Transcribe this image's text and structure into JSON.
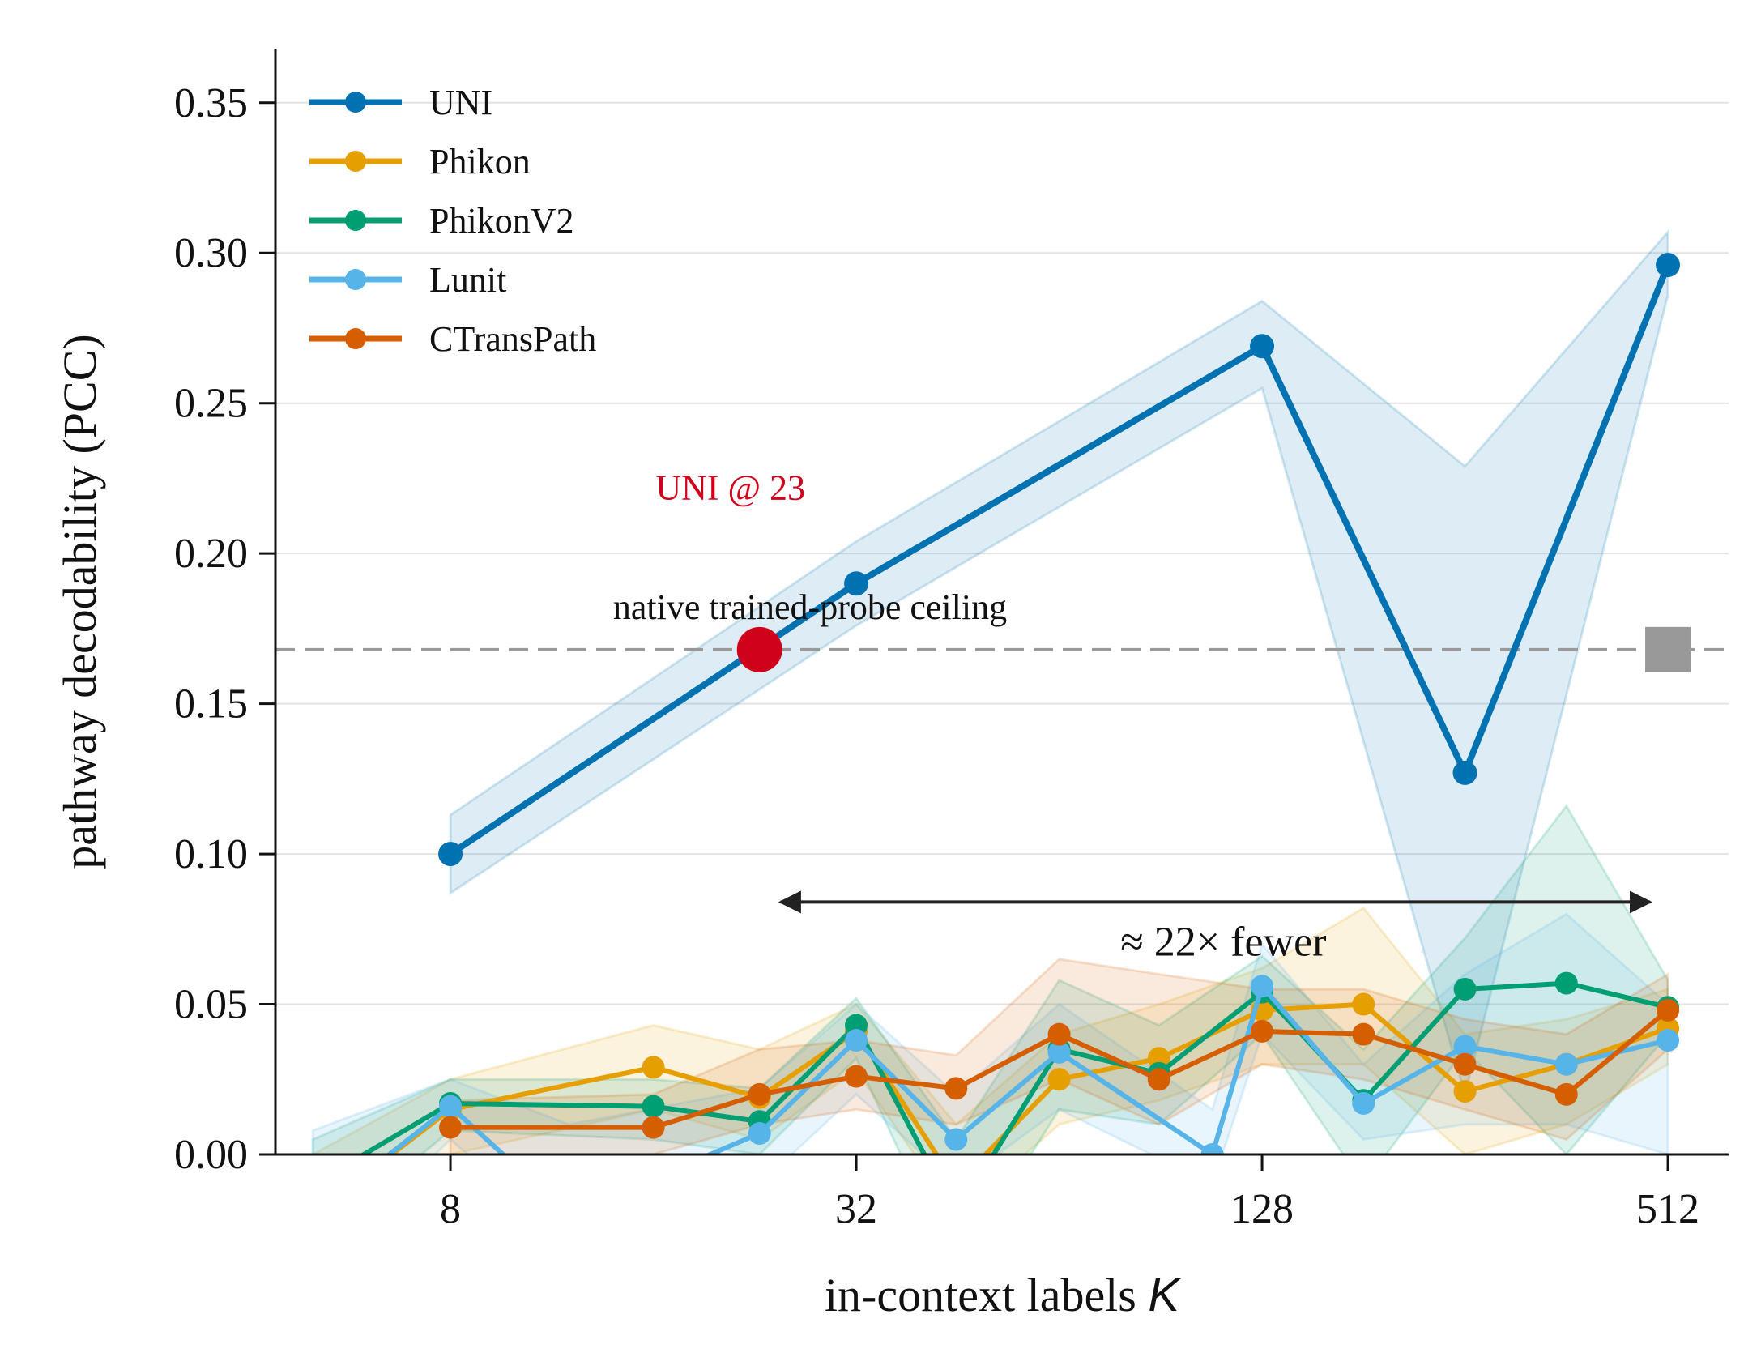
{
  "chart_data": {
    "type": "line",
    "xlabel": "in-context labels",
    "xlabel_var": "K",
    "ylabel": "pathway decodability (PCC)",
    "x_scale": "log2",
    "xlim": [
      4.4,
      630
    ],
    "ylim": [
      0.0,
      0.368
    ],
    "xticks": [
      8,
      32,
      128,
      512
    ],
    "xtick_labels": [
      "8",
      "32",
      "128",
      "512"
    ],
    "yticks": [
      0.0,
      0.05,
      0.1,
      0.15,
      0.2,
      0.25,
      0.3,
      0.35
    ],
    "ytick_labels": [
      "0.00",
      "0.05",
      "0.10",
      "0.15",
      "0.20",
      "0.25",
      "0.30",
      "0.35"
    ],
    "grid": "horizontal",
    "legend_position": "top-left",
    "series": [
      {
        "name": "UNI",
        "color": "#0072b2",
        "linewidth": "thick",
        "x": [
          8,
          32,
          128,
          256,
          512
        ],
        "y": [
          0.1,
          0.19,
          0.269,
          0.127,
          0.296
        ],
        "band_lower": [
          0.087,
          0.176,
          0.255,
          0.02,
          0.286
        ],
        "band_upper": [
          0.113,
          0.204,
          0.284,
          0.229,
          0.307
        ]
      },
      {
        "name": "Phikon",
        "color": "#e69f00",
        "x": [
          5,
          8,
          16,
          23,
          32,
          45,
          64,
          90,
          128,
          181,
          256,
          362,
          512
        ],
        "y": [
          -0.02,
          0.015,
          0.029,
          0.019,
          0.041,
          -0.01,
          0.025,
          0.032,
          0.048,
          0.05,
          0.021,
          0.03,
          0.042
        ],
        "band_lower": [
          -0.04,
          0.0,
          0.015,
          0.005,
          0.028,
          -0.02,
          0.01,
          0.018,
          0.03,
          0.03,
          0.0,
          0.01,
          0.03
        ],
        "band_upper": [
          0.0,
          0.025,
          0.043,
          0.035,
          0.05,
          0.01,
          0.04,
          0.05,
          0.062,
          0.082,
          0.04,
          0.045,
          0.055
        ]
      },
      {
        "name": "PhikonV2",
        "color": "#009e73",
        "x": [
          5,
          8,
          16,
          23,
          32,
          45,
          64,
          90,
          128,
          181,
          256,
          362,
          512
        ],
        "y": [
          -0.01,
          0.017,
          0.016,
          0.011,
          0.043,
          -0.02,
          0.035,
          0.027,
          0.054,
          0.018,
          0.055,
          0.057,
          0.049
        ],
        "band_lower": [
          -0.03,
          0.008,
          0.005,
          0.0,
          0.032,
          -0.04,
          0.015,
          0.01,
          0.04,
          -0.01,
          0.035,
          0.0,
          0.04
        ],
        "band_upper": [
          0.005,
          0.025,
          0.025,
          0.022,
          0.052,
          0.005,
          0.058,
          0.043,
          0.066,
          0.035,
          0.072,
          0.116,
          0.058
        ]
      },
      {
        "name": "Lunit",
        "color": "#56b4e9",
        "x": [
          5,
          8,
          12,
          23,
          32,
          45,
          64,
          108,
          128,
          181,
          256,
          362,
          512
        ],
        "y": [
          -0.02,
          0.016,
          -0.02,
          0.007,
          0.038,
          0.005,
          0.034,
          0.0,
          0.056,
          0.017,
          0.036,
          0.03,
          0.038
        ],
        "band_lower": [
          -0.04,
          0.005,
          -0.03,
          -0.01,
          0.02,
          -0.01,
          0.015,
          -0.01,
          0.04,
          0.005,
          0.01,
          0.01,
          0.0
        ],
        "band_upper": [
          0.008,
          0.025,
          0.01,
          0.022,
          0.05,
          0.02,
          0.05,
          0.015,
          0.07,
          0.03,
          0.06,
          0.08,
          0.05
        ]
      },
      {
        "name": "CTransPath",
        "color": "#d55e00",
        "x": [
          8,
          16,
          23,
          32,
          45,
          64,
          90,
          128,
          181,
          256,
          362,
          512
        ],
        "y": [
          0.009,
          0.009,
          0.02,
          0.026,
          0.022,
          0.04,
          0.025,
          0.041,
          0.04,
          0.03,
          0.02,
          0.048
        ],
        "band_lower": [
          0.0,
          0.0,
          0.01,
          0.015,
          0.01,
          0.025,
          0.01,
          0.03,
          0.025,
          0.015,
          0.005,
          0.035
        ],
        "band_upper": [
          0.018,
          0.02,
          0.035,
          0.038,
          0.033,
          0.065,
          0.06,
          0.055,
          0.055,
          0.045,
          0.04,
          0.06
        ]
      }
    ],
    "reference_line": {
      "label": "native trained-probe ceiling",
      "y": 0.168,
      "color": "#999999",
      "marker_x": 512
    },
    "highlight_point": {
      "label": "UNI @ 23",
      "x": 23,
      "y": 0.168,
      "color": "#d0021b"
    },
    "arrow_annotation": {
      "label": "≈ 22× fewer",
      "x_from": 23,
      "x_to": 512,
      "y": 0.084
    }
  }
}
